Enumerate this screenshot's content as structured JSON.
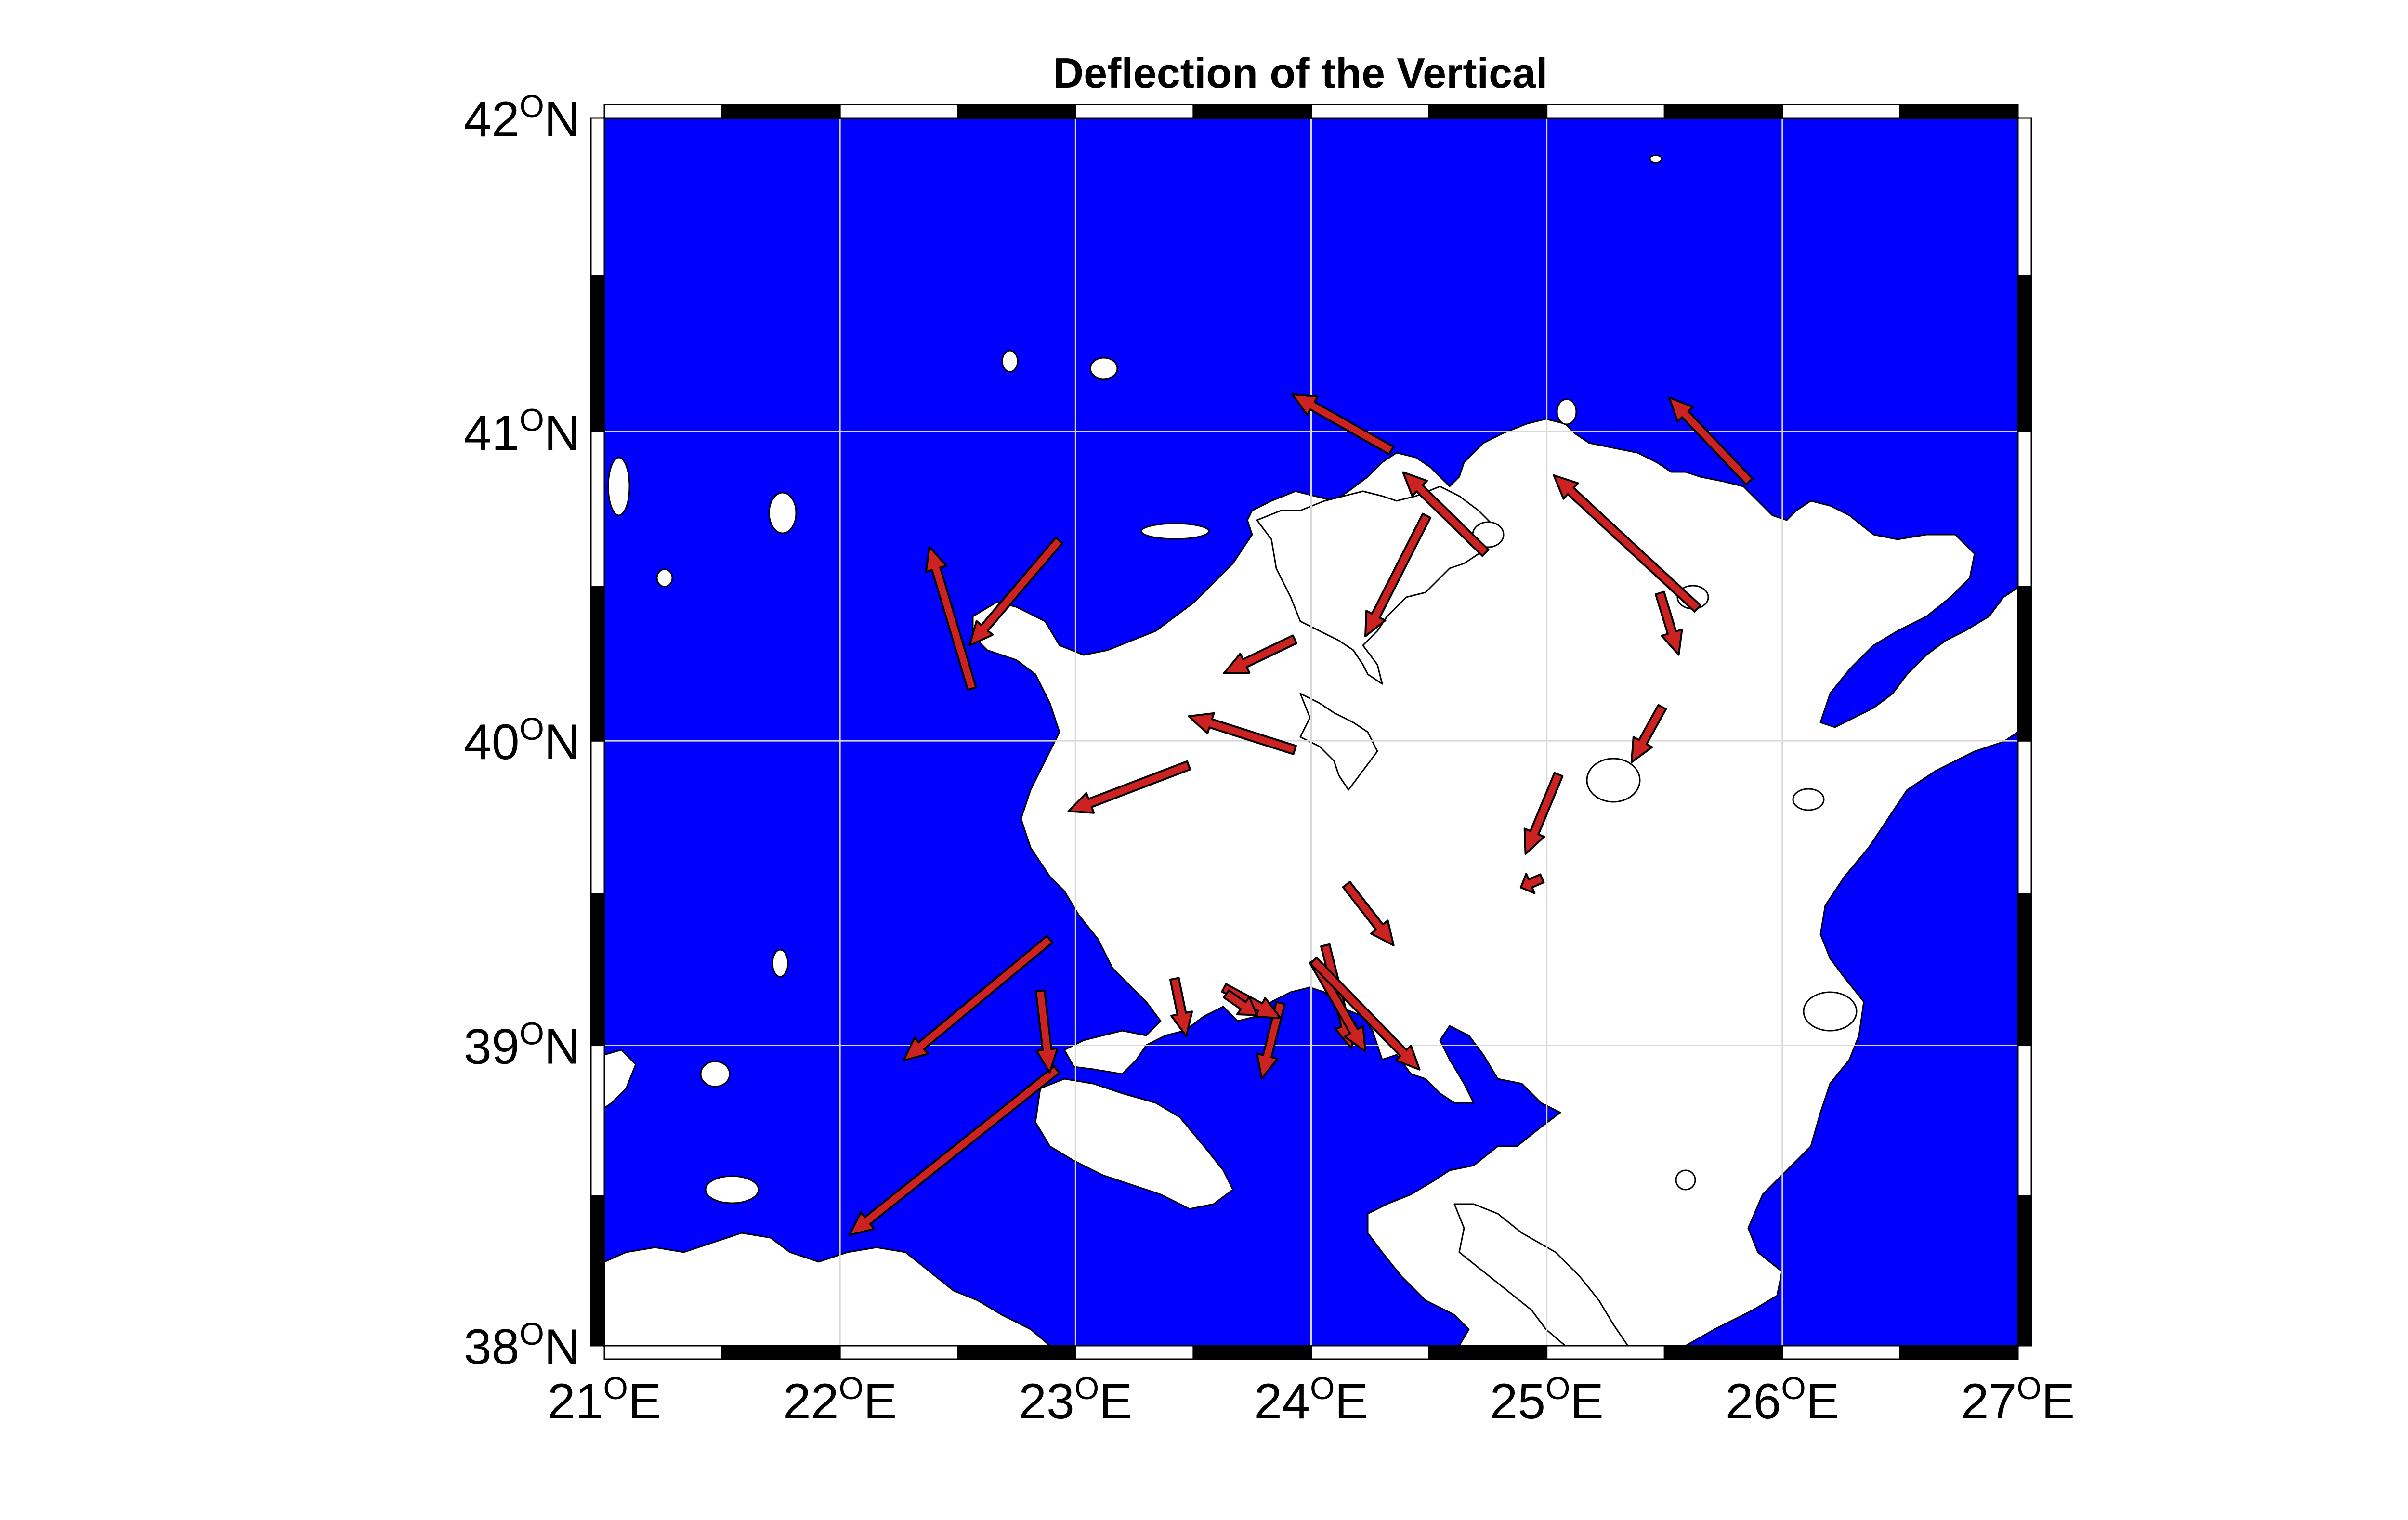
{
  "title": "Deflection of the Vertical",
  "colors": {
    "sea": "#0000ff",
    "land": "#ffffff",
    "arrow_fill": "#cc2222",
    "arrow_edge": "#000000",
    "grid": "#d9d9d9",
    "frame": "#000000"
  },
  "projection": "mercator",
  "lon_range": [
    21,
    27
  ],
  "lat_range": [
    38,
    42
  ],
  "grid": true,
  "x_ticks": [
    {
      "deg": "21",
      "sup": "O",
      "hemi": "E"
    },
    {
      "deg": "22",
      "sup": "O",
      "hemi": "E"
    },
    {
      "deg": "23",
      "sup": "O",
      "hemi": "E"
    },
    {
      "deg": "24",
      "sup": "O",
      "hemi": "E"
    },
    {
      "deg": "25",
      "sup": "O",
      "hemi": "E"
    },
    {
      "deg": "26",
      "sup": "O",
      "hemi": "E"
    },
    {
      "deg": "27",
      "sup": "O",
      "hemi": "E"
    }
  ],
  "y_ticks": [
    {
      "deg": "38",
      "sup": "O",
      "hemi": "N"
    },
    {
      "deg": "39",
      "sup": "O",
      "hemi": "N"
    },
    {
      "deg": "40",
      "sup": "O",
      "hemi": "N"
    },
    {
      "deg": "41",
      "sup": "O",
      "hemi": "N"
    },
    {
      "deg": "42",
      "sup": "O",
      "hemi": "N"
    }
  ],
  "chart_data": {
    "type": "scatter",
    "title": "Deflection of the Vertical",
    "xlabel": "",
    "ylabel": "",
    "xlim": [
      21,
      27
    ],
    "ylim": [
      38,
      42
    ],
    "grid": true,
    "series": [
      {
        "fields": [
          "lon_start",
          "lat_start",
          "lon_end",
          "lat_end"
        ],
        "values": [
          [
            22.89,
            39.35,
            22.27,
            38.95
          ],
          [
            22.92,
            38.92,
            22.04,
            38.37
          ],
          [
            22.85,
            39.18,
            22.89,
            38.91
          ],
          [
            22.93,
            40.65,
            22.55,
            40.31
          ],
          [
            22.56,
            40.17,
            22.38,
            40.63
          ],
          [
            23.93,
            40.33,
            23.63,
            40.22
          ],
          [
            23.93,
            39.97,
            23.48,
            40.08
          ],
          [
            23.48,
            39.92,
            22.97,
            39.77
          ],
          [
            24.34,
            40.94,
            23.92,
            41.12
          ],
          [
            24.74,
            40.61,
            24.39,
            40.87
          ],
          [
            24.49,
            40.73,
            24.23,
            40.34
          ],
          [
            25.64,
            40.43,
            25.03,
            40.86
          ],
          [
            25.86,
            40.84,
            25.52,
            41.11
          ],
          [
            25.48,
            40.48,
            25.56,
            40.28
          ],
          [
            25.49,
            40.11,
            25.36,
            39.93
          ],
          [
            25.05,
            39.89,
            24.91,
            39.63
          ],
          [
            24.98,
            39.55,
            24.89,
            39.52
          ],
          [
            24.15,
            39.53,
            24.35,
            39.33
          ],
          [
            24.06,
            39.33,
            24.17,
            38.99
          ],
          [
            24.01,
            39.28,
            24.23,
            38.98
          ],
          [
            24.01,
            39.28,
            24.46,
            38.92
          ],
          [
            23.87,
            39.14,
            23.79,
            38.89
          ],
          [
            23.63,
            39.19,
            23.87,
            39.09
          ],
          [
            23.64,
            39.17,
            23.77,
            39.1
          ],
          [
            23.42,
            39.22,
            23.47,
            39.03
          ]
        ]
      }
    ]
  }
}
